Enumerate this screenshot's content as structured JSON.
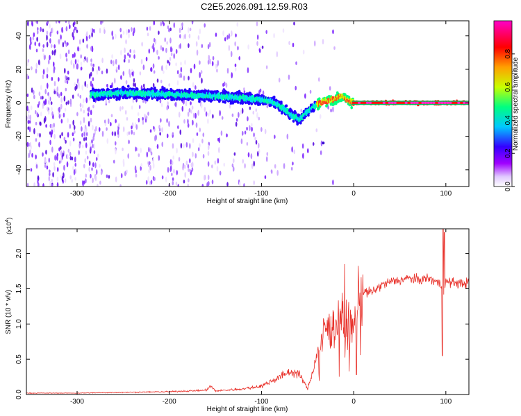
{
  "title": "C2E5.2026.091.12.59.R03",
  "chart_data": [
    {
      "type": "heatmap",
      "xlabel": "Height of straight line (km)",
      "ylabel": "Frequency (Hz)",
      "xlim": [
        -355,
        125
      ],
      "ylim": [
        -50,
        49
      ],
      "xticks": [
        -300,
        -200,
        -100,
        0,
        100
      ],
      "yticks": [
        -40,
        -20,
        0,
        20,
        40
      ],
      "colorbar": {
        "label": "Normalized spectral amplitude",
        "range": [
          0,
          1
        ],
        "ticks": [
          0.0,
          0.2,
          0.4,
          0.6,
          0.8
        ],
        "colormap": [
          "#ffffff",
          "#a000ff",
          "#3300ff",
          "#00c8ff",
          "#00ff80",
          "#c8ff00",
          "#ffa000",
          "#ff0000",
          "#ff00c8"
        ]
      },
      "ridge": {
        "description_points_x": [
          -280,
          -250,
          -200,
          -150,
          -120,
          -100,
          -85,
          -75,
          -65,
          -58,
          -50,
          -40,
          -30,
          -20,
          -12,
          -5,
          0,
          20,
          50,
          90,
          125
        ],
        "description_points_y": [
          5,
          6,
          5,
          4,
          3,
          2,
          0,
          -4,
          -8,
          -10,
          -5,
          -1,
          1,
          2,
          4,
          1,
          0,
          0,
          0,
          0,
          0
        ]
      }
    },
    {
      "type": "line",
      "xlabel": "Height of straight line (km)",
      "ylabel": "SNR (10 * v/v)",
      "y_multiplier": "(x10",
      "y_exponent": "4",
      "y_multiplier_close": ")",
      "xlim": [
        -355,
        125
      ],
      "ylim": [
        0,
        2.35
      ],
      "xticks": [
        -300,
        -200,
        -100,
        0,
        100
      ],
      "yticks": [
        0.0,
        0.5,
        1.0,
        1.5,
        2.0
      ],
      "series": [
        {
          "color": "#e8312a",
          "envelope_x": [
            -355,
            -300,
            -250,
            -200,
            -160,
            -155,
            -150,
            -120,
            -100,
            -80,
            -70,
            -60,
            -55,
            -50,
            -45,
            -40,
            -35,
            -30,
            -25,
            -20,
            -15,
            -10,
            -5,
            0,
            5,
            10,
            20,
            30,
            40,
            50,
            60,
            70,
            80,
            90,
            95,
            97,
            100,
            110,
            125
          ],
          "envelope_y": [
            0.02,
            0.02,
            0.03,
            0.04,
            0.06,
            0.12,
            0.05,
            0.08,
            0.12,
            0.25,
            0.32,
            0.3,
            0.2,
            0.08,
            0.3,
            0.55,
            0.75,
            0.95,
            0.9,
            1.0,
            1.1,
            1.05,
            0.9,
            1.0,
            1.3,
            1.45,
            1.45,
            1.55,
            1.6,
            1.62,
            1.65,
            1.62,
            1.65,
            1.6,
            1.55,
            1.4,
            1.6,
            1.58,
            1.58
          ]
        }
      ]
    }
  ]
}
